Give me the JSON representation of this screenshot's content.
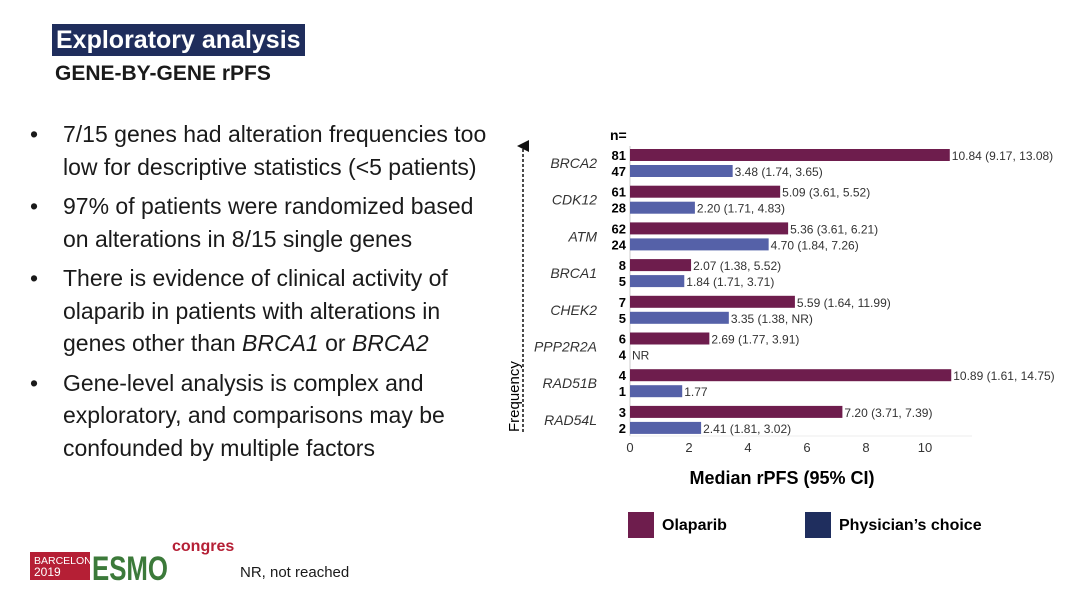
{
  "slide": {
    "title": "Exploratory analysis",
    "subtitle": "GENE-BY-GENE rPFS",
    "bullets": [
      "7/15 genes had alteration frequencies too low for descriptive statistics (<5 patients)",
      "97% of patients were randomized based on alterations in 8/15 single genes",
      "There is evidence of clinical activity of olaparib in patients with alterations in genes other than BRCA1 or BRCA2",
      "Gene-level analysis is complex and exploratory, and comparisons may be confounded by multiple factors"
    ],
    "bullet3_parts": [
      "There is evidence of clinical activity of olaparib in patients with alterations in genes other than ",
      "BRCA1",
      " or ",
      "BRCA2"
    ],
    "footnote": "NR, not reached",
    "logo": {
      "city": "BARCELONA",
      "year": "2019",
      "brand": "ESMO",
      "suffix": "congress"
    }
  },
  "chart_data": {
    "type": "bar",
    "orientation": "horizontal",
    "n_header": "n=",
    "categories": [
      "BRCA2",
      "CDK12",
      "ATM",
      "BRCA1",
      "CHEK2",
      "PPP2R2A",
      "RAD51B",
      "RAD54L"
    ],
    "series": [
      {
        "name": "Olaparib",
        "color": "#6e1d4d",
        "values": [
          10.84,
          5.09,
          5.36,
          2.07,
          5.59,
          2.69,
          10.89,
          7.2
        ],
        "n": [
          81,
          61,
          62,
          8,
          7,
          6,
          4,
          3
        ],
        "labels": [
          "10.84 (9.17, 13.08)",
          "5.09 (3.61, 5.52)",
          "5.36 (3.61, 6.21)",
          "2.07 (1.38, 5.52)",
          "5.59 (1.64, 11.99)",
          "2.69 (1.77, 3.91)",
          "10.89 (1.61, 14.75)",
          "7.20 (3.71, 7.39)"
        ]
      },
      {
        "name": "Physician’s choice",
        "color": "#5561a8",
        "legend_color": "#1f2e5e",
        "values": [
          3.48,
          2.2,
          4.7,
          1.84,
          3.35,
          null,
          1.77,
          2.41
        ],
        "n": [
          47,
          28,
          24,
          5,
          5,
          4,
          1,
          2
        ],
        "labels": [
          "3.48 (1.74, 3.65)",
          "2.20 (1.71, 4.83)",
          "4.70 (1.84, 7.26)",
          "1.84 (1.71, 3.71)",
          "3.35 (1.38, NR)",
          "NR",
          "1.77",
          "2.41 (1.81, 3.02)"
        ]
      }
    ],
    "xlabel": "Median rPFS (95% CI)",
    "ylabel": "Frequency",
    "xticks": [
      0,
      2,
      4,
      6,
      8,
      10
    ],
    "xlim": [
      0,
      11.5
    ],
    "grid": false,
    "legend": "bottom"
  }
}
